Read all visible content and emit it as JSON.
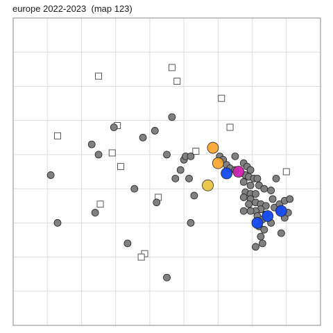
{
  "chart_data": {
    "type": "scatter",
    "title": "europe 2022-2023  (map 123)",
    "xlabel": "",
    "ylabel": "",
    "xlim": [
      0,
      9
    ],
    "ylim": [
      0,
      9
    ],
    "grid": true,
    "legend": "none",
    "colors": {
      "panel_border": "#888888",
      "grid": "#dddddd",
      "gray_point": "#808080",
      "point_outline": "#222222",
      "square_fill": "#ffffff",
      "square_outline": "#444444"
    },
    "series": [
      {
        "marker": "gray-circle",
        "points": [
          [
            1.1,
            4.4
          ],
          [
            1.3,
            3.0
          ],
          [
            2.3,
            5.3
          ],
          [
            2.5,
            5.0
          ],
          [
            2.4,
            3.3
          ],
          [
            2.95,
            5.8
          ],
          [
            3.35,
            2.4
          ],
          [
            3.55,
            4.0
          ],
          [
            3.8,
            5.5
          ],
          [
            4.15,
            5.7
          ],
          [
            4.2,
            3.6
          ],
          [
            4.5,
            5.0
          ],
          [
            4.65,
            6.1
          ],
          [
            4.75,
            4.3
          ],
          [
            4.9,
            4.55
          ],
          [
            5.0,
            4.85
          ],
          [
            5.05,
            4.95
          ],
          [
            5.2,
            4.95
          ],
          [
            5.15,
            4.3
          ],
          [
            5.3,
            3.8
          ],
          [
            5.2,
            3.0
          ],
          [
            4.5,
            1.4
          ],
          [
            6.05,
            4.95
          ],
          [
            6.15,
            4.85
          ],
          [
            6.25,
            4.7
          ],
          [
            6.35,
            4.6
          ],
          [
            6.5,
            4.55
          ],
          [
            6.5,
            4.95
          ],
          [
            6.75,
            4.75
          ],
          [
            6.85,
            4.65
          ],
          [
            6.95,
            4.55
          ],
          [
            6.8,
            4.4
          ],
          [
            6.9,
            4.35
          ],
          [
            7.05,
            4.3
          ],
          [
            7.15,
            4.3
          ],
          [
            6.75,
            4.2
          ],
          [
            6.95,
            4.1
          ],
          [
            7.2,
            4.1
          ],
          [
            7.35,
            4.0
          ],
          [
            6.8,
            3.9
          ],
          [
            6.95,
            3.85
          ],
          [
            7.1,
            3.85
          ],
          [
            6.75,
            3.75
          ],
          [
            6.95,
            3.7
          ],
          [
            7.1,
            3.6
          ],
          [
            7.25,
            3.55
          ],
          [
            7.4,
            3.5
          ],
          [
            7.25,
            3.4
          ],
          [
            7.1,
            3.35
          ],
          [
            6.95,
            3.35
          ],
          [
            6.75,
            3.35
          ],
          [
            6.9,
            3.55
          ],
          [
            7.15,
            3.2
          ],
          [
            7.3,
            3.1
          ],
          [
            7.2,
            2.9
          ],
          [
            7.35,
            2.8
          ],
          [
            7.55,
            3.0
          ],
          [
            7.6,
            3.7
          ],
          [
            7.65,
            3.45
          ],
          [
            7.8,
            3.35
          ],
          [
            7.95,
            3.15
          ],
          [
            7.8,
            3.55
          ],
          [
            7.85,
            2.7
          ],
          [
            7.95,
            3.65
          ],
          [
            8.05,
            3.3
          ],
          [
            8.1,
            3.7
          ],
          [
            7.7,
            4.3
          ],
          [
            7.25,
            2.6
          ],
          [
            7.3,
            2.4
          ],
          [
            7.1,
            2.3
          ],
          [
            7.55,
            3.95
          ],
          [
            7.4,
            3.25
          ]
        ]
      },
      {
        "marker": "orange-circle",
        "points": [
          [
            5.85,
            5.2
          ],
          [
            6.0,
            4.75
          ]
        ]
      },
      {
        "marker": "yellow-circle",
        "points": [
          [
            5.7,
            4.1
          ]
        ]
      },
      {
        "marker": "blue-circle",
        "points": [
          [
            6.25,
            4.45
          ],
          [
            7.15,
            3.0
          ],
          [
            7.45,
            3.2
          ],
          [
            7.85,
            3.35
          ]
        ]
      },
      {
        "marker": "magenta-circle",
        "points": [
          [
            6.6,
            4.5
          ]
        ]
      },
      {
        "marker": "open-square",
        "points": [
          [
            1.3,
            5.55
          ],
          [
            2.5,
            7.3
          ],
          [
            3.05,
            5.85
          ],
          [
            2.9,
            5.05
          ],
          [
            3.15,
            4.65
          ],
          [
            2.55,
            3.55
          ],
          [
            4.65,
            7.55
          ],
          [
            4.8,
            7.15
          ],
          [
            6.1,
            6.65
          ],
          [
            6.35,
            5.8
          ],
          [
            5.35,
            5.1
          ],
          [
            8.0,
            4.5
          ],
          [
            4.25,
            3.75
          ],
          [
            3.85,
            2.1
          ],
          [
            3.75,
            2.0
          ]
        ]
      }
    ]
  }
}
